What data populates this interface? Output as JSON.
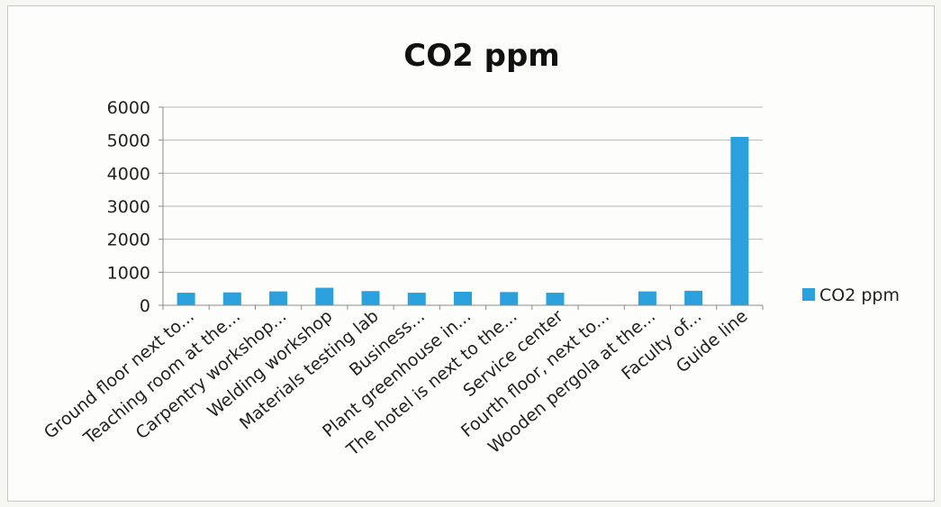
{
  "chart_data": {
    "type": "bar",
    "title": "CO2  ppm",
    "categories": [
      "Ground floor next to...",
      "Teaching room at the...",
      "Carpentry workshop...",
      "Welding workshop",
      "Materials testing lab",
      "Business...",
      "Plant greenhouse in...",
      "The hotel is next to the...",
      "Service center",
      "Fourth floor, next to...",
      "Wooden pergola at the...",
      "Faculty of...",
      "Guide line"
    ],
    "series": [
      {
        "name": "CO2  ppm",
        "values": [
          380,
          390,
          420,
          530,
          430,
          380,
          410,
          400,
          380,
          0,
          420,
          440,
          5100
        ]
      }
    ],
    "ylim": [
      0,
      6000
    ],
    "yticks": [
      0,
      1000,
      2000,
      3000,
      4000,
      5000,
      6000
    ],
    "grid": true,
    "legend": "right",
    "colors": {
      "bar": "#2aa0dc",
      "grid": "#b9b9b9",
      "axis": "#8a8a8a"
    }
  }
}
